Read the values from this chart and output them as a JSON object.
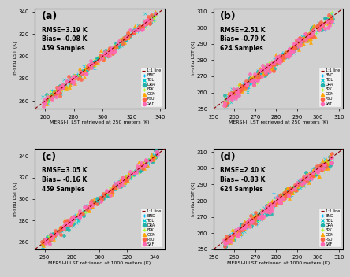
{
  "panels": [
    {
      "label": "(a)",
      "rmse": "RMSE=3.19 K",
      "bias": "Bias= -0.08 K",
      "samples": "459 Samples",
      "xlabel": "MERSI-II LST retrieved at 250 meters (K)",
      "ylabel": "In-situ LST (K)",
      "xlim": [
        253,
        343
      ],
      "ylim": [
        253,
        343
      ],
      "xticks": [
        260,
        280,
        300,
        320,
        340
      ],
      "yticks": [
        260,
        280,
        300,
        320,
        340
      ]
    },
    {
      "label": "(b)",
      "rmse": "RMSE=2.51 K",
      "bias": "Bias= -0.79 K",
      "samples": "624 Samples",
      "xlabel": "MERSI-II LST retrieved at 250 meters (K)",
      "ylabel": "In-situ LST (K)",
      "xlim": [
        250,
        312
      ],
      "ylim": [
        250,
        312
      ],
      "xticks": [
        250,
        260,
        270,
        280,
        290,
        300,
        310
      ],
      "yticks": [
        250,
        260,
        270,
        280,
        290,
        300,
        310
      ]
    },
    {
      "label": "(c)",
      "rmse": "RMSE=3.05 K",
      "bias": "Bias= -0.16 K",
      "samples": "459 Samples",
      "xlabel": "MERSI-II LST retrieved at 1000 meters (K)",
      "ylabel": "In-situ LST (K)",
      "xlim": [
        253,
        347
      ],
      "ylim": [
        253,
        347
      ],
      "xticks": [
        260,
        280,
        300,
        320,
        340
      ],
      "yticks": [
        260,
        280,
        300,
        320,
        340
      ]
    },
    {
      "label": "(d)",
      "rmse": "RMSE=2.40 K",
      "bias": "Bias= -0.83 K",
      "samples": "624 Samples",
      "xlabel": "MERSI-II LST retrieved at 1000 meters (K)",
      "ylabel": "In-situ LST (K)",
      "xlim": [
        250,
        312
      ],
      "ylim": [
        250,
        312
      ],
      "xticks": [
        250,
        260,
        270,
        280,
        290,
        300,
        310
      ],
      "yticks": [
        250,
        260,
        270,
        280,
        290,
        300,
        310
      ]
    }
  ],
  "sites": [
    {
      "name": "BND",
      "color": "#00BFFF",
      "marker": "+"
    },
    {
      "name": "TBL",
      "color": "#00CED1",
      "marker": "x"
    },
    {
      "name": "DRA",
      "color": "#20B2AA",
      "marker": "o"
    },
    {
      "name": "FPK",
      "color": "#ADFF2F",
      "marker": "+"
    },
    {
      "name": "GCM",
      "color": "#FFA500",
      "marker": "^"
    },
    {
      "name": "PSU",
      "color": "#FF6347",
      "marker": "o"
    },
    {
      "name": "SXF",
      "color": "#FF69B4",
      "marker": "o"
    }
  ],
  "bg_color": "#d0d0d0"
}
